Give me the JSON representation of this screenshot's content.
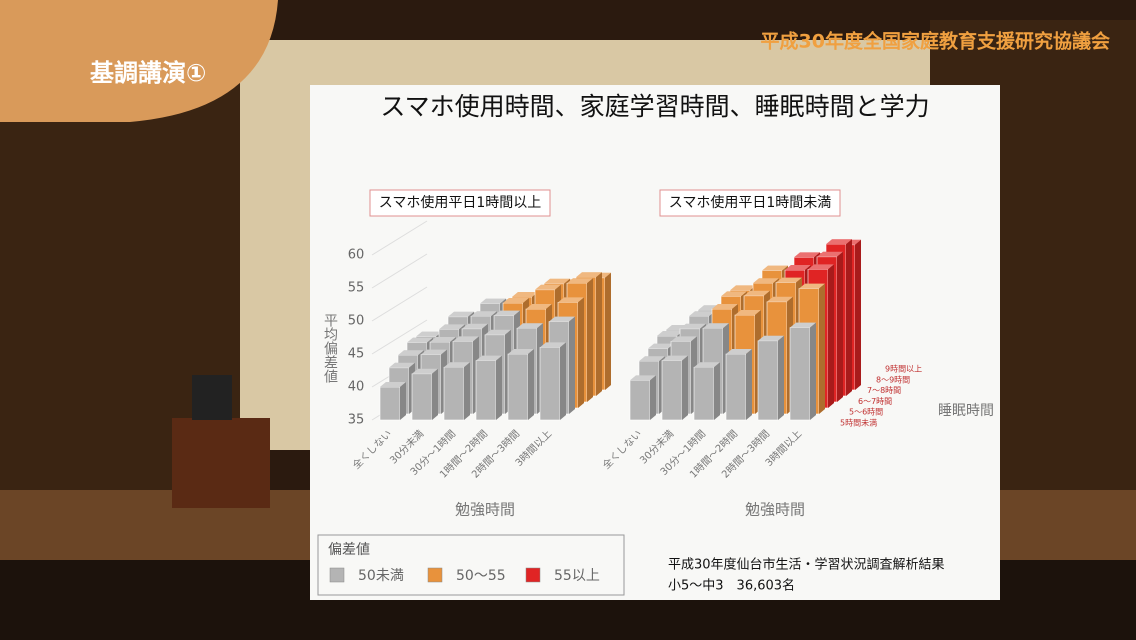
{
  "banner": {
    "section": "基調講演①",
    "event": "平成30年度全国家庭教育支援研究協議会"
  },
  "chart_data": {
    "type": "bar3d",
    "title": "スマホ使用時間、家庭学習時間、睡眠時間と学力",
    "y_label": "平均偏差値",
    "x_label": "勉強時間",
    "depth_label": "睡眠時間",
    "ylim": [
      35,
      60
    ],
    "yticks": [
      35,
      40,
      45,
      50,
      55,
      60
    ],
    "categories": [
      "全くしない",
      "30分未満",
      "30分～1時間",
      "1時間～2時間",
      "2時間～3時間",
      "3時間以上"
    ],
    "depth_categories": [
      "5時間未満",
      "5～6時間",
      "6～7時間",
      "7～8時間",
      "8～9時間",
      "9時間以上"
    ],
    "panels": [
      {
        "title": "スマホ使用平日1時間以上",
        "values": [
          [
            40,
            42,
            43,
            44,
            45,
            46
          ],
          [
            42,
            44,
            46,
            47,
            48,
            49
          ],
          [
            43,
            45,
            47,
            49,
            50,
            51
          ],
          [
            44,
            46,
            48,
            50,
            52,
            53
          ],
          [
            44,
            47,
            49,
            50,
            52,
            53
          ],
          [
            43,
            46,
            48,
            49,
            51,
            52
          ]
        ]
      },
      {
        "title": "スマホ使用平日1時間未満",
        "values": [
          [
            41,
            44,
            43,
            45,
            47,
            49
          ],
          [
            43,
            46,
            48,
            50,
            52,
            54
          ],
          [
            44,
            47,
            50,
            52,
            54,
            56
          ],
          [
            45,
            48,
            51,
            53,
            55,
            57
          ],
          [
            45,
            48,
            51,
            54,
            56,
            58
          ],
          [
            44,
            47,
            50,
            52,
            55,
            57
          ]
        ]
      }
    ],
    "legend": {
      "title": "偏差値",
      "items": [
        {
          "name": "50未満",
          "color": "#b4b4b4"
        },
        {
          "name": "50～55",
          "color": "#e8923c"
        },
        {
          "name": "55以上",
          "color": "#e02424"
        }
      ]
    },
    "source": "平成30年度仙台市生活・学習状況調査解析結果",
    "sample": "小5～中3　36,603名"
  }
}
